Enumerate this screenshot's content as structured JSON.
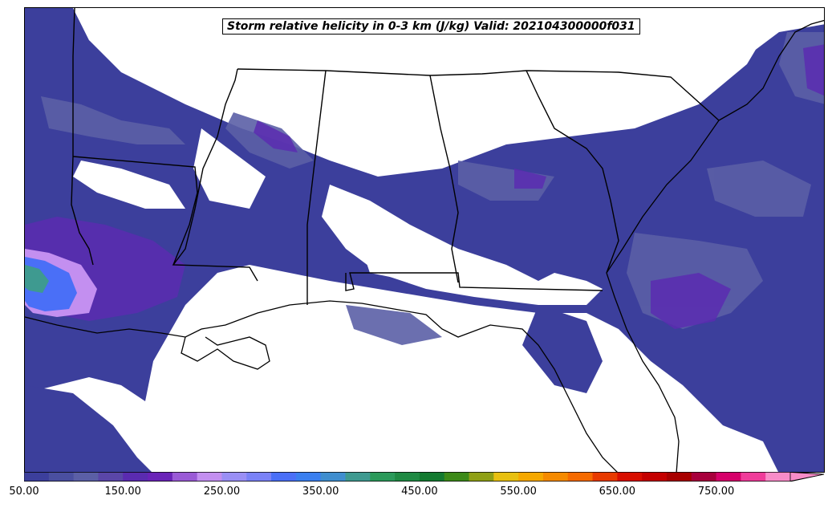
{
  "title": "Storm relative helicity in 0-3 km (J/kg) Valid: 202104300000f031",
  "colorbar": {
    "extend": "max",
    "tick_labels": [
      "50.00",
      "150.00",
      "250.00",
      "350.00",
      "450.00",
      "550.00",
      "650.00",
      "750.00"
    ],
    "levels": [
      50,
      75,
      100,
      125,
      150,
      175,
      200,
      225,
      250,
      275,
      300,
      325,
      350,
      375,
      400,
      425,
      450,
      475,
      500,
      525,
      550,
      575,
      600,
      625,
      650,
      675,
      700,
      725,
      750,
      775,
      800
    ],
    "colors": [
      "#3c3f9c",
      "#4a4fa0",
      "#5b5fa6",
      "#5a46a8",
      "#5a2bb0",
      "#6a23b8",
      "#9a5ad6",
      "#c38ff0",
      "#9a8ff5",
      "#7a82f7",
      "#4a6ff7",
      "#3a7ff0",
      "#3f8ecf",
      "#3e9a90",
      "#2b9a5a",
      "#1f8a43",
      "#137a30",
      "#3c8a18",
      "#8fa015",
      "#e8c010",
      "#f5a800",
      "#f58a00",
      "#f56a00",
      "#e83a00",
      "#d80e00",
      "#c40000",
      "#a80000",
      "#a8003c",
      "#d6006a",
      "#f03c9a",
      "#f88cc8"
    ]
  },
  "map": {
    "region": "Southeastern United States",
    "field": "storm relative helicity 0-3 km",
    "features": [
      "state-borders",
      "coastline",
      "filled-contours"
    ]
  }
}
